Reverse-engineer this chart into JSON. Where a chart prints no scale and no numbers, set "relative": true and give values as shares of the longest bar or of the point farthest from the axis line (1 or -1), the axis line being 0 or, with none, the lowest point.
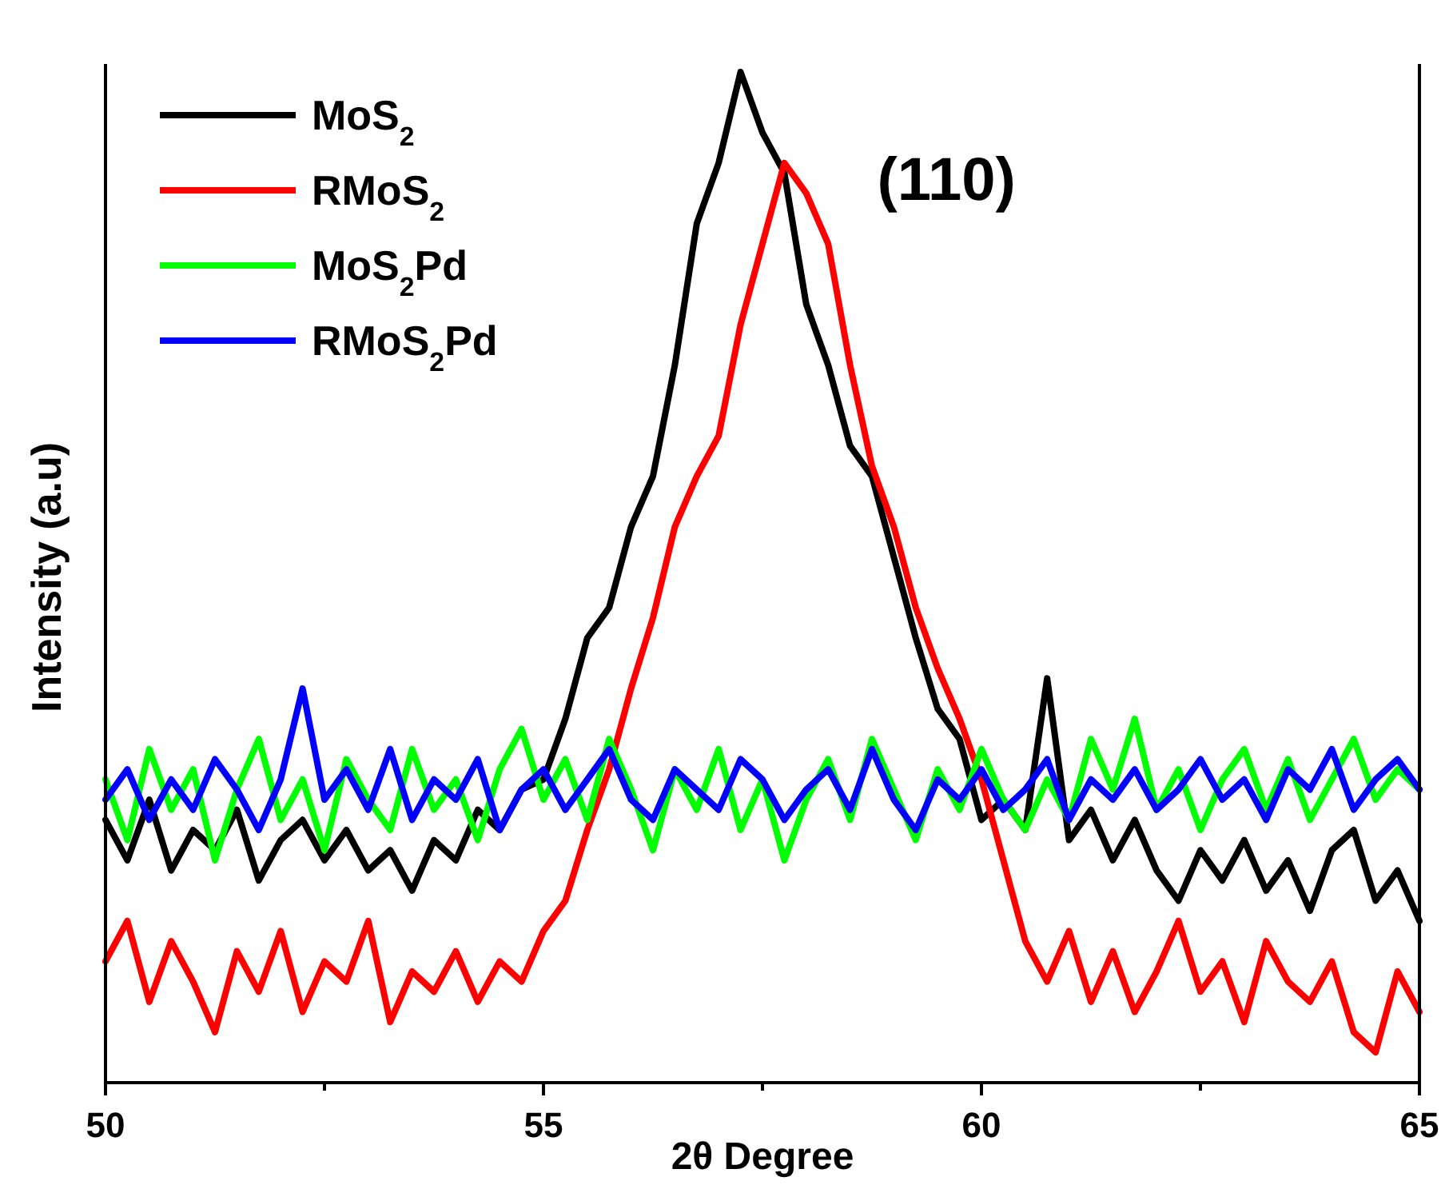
{
  "chart_data": {
    "type": "line",
    "xlabel": "2θ Degree",
    "ylabel": "Intensity (a.u)",
    "relative": true,
    "legend": "top left",
    "xlim": [
      50,
      65
    ],
    "xticks": [
      50,
      {
        "value": 52.5,
        "label": null
      },
      55,
      {
        "value": 57.5,
        "label": null
      },
      60,
      {
        "value": 62.5,
        "label": null
      },
      65
    ],
    "annotations": [
      "(110)"
    ],
    "x": [
      50,
      50.25,
      50.5,
      50.75,
      51,
      51.25,
      51.5,
      51.75,
      52,
      52.25,
      52.5,
      52.75,
      53,
      53.25,
      53.5,
      53.75,
      54,
      54.25,
      54.5,
      54.75,
      55,
      55.25,
      55.5,
      55.75,
      56,
      56.25,
      56.5,
      56.75,
      57,
      57.25,
      57.5,
      57.75,
      58,
      58.25,
      58.5,
      58.75,
      59,
      59.25,
      59.5,
      59.75,
      60,
      60.25,
      60.5,
      60.75,
      61,
      61.25,
      61.5,
      61.75,
      62,
      62.25,
      62.5,
      62.75,
      63,
      63.25,
      63.5,
      63.75,
      64,
      64.25,
      64.5,
      64.75,
      65
    ],
    "series": [
      {
        "name": "MoS$_{2}$",
        "color": "#000000",
        "values": [
          0.26,
          0.22,
          0.28,
          0.21,
          0.25,
          0.23,
          0.27,
          0.2,
          0.24,
          0.26,
          0.22,
          0.25,
          0.21,
          0.23,
          0.19,
          0.24,
          0.22,
          0.27,
          0.25,
          0.29,
          0.3,
          0.36,
          0.44,
          0.47,
          0.55,
          0.6,
          0.71,
          0.85,
          0.91,
          1.0,
          0.94,
          0.9,
          0.77,
          0.71,
          0.63,
          0.6,
          0.52,
          0.44,
          0.37,
          0.34,
          0.26,
          0.28,
          0.25,
          0.4,
          0.24,
          0.27,
          0.22,
          0.26,
          0.21,
          0.18,
          0.23,
          0.2,
          0.24,
          0.19,
          0.22,
          0.17,
          0.23,
          0.25,
          0.18,
          0.21,
          0.16
        ]
      },
      {
        "name": "RMoS$_{2}$",
        "color": "#ff0000",
        "values": [
          0.12,
          0.16,
          0.08,
          0.14,
          0.1,
          0.05,
          0.13,
          0.09,
          0.15,
          0.07,
          0.12,
          0.1,
          0.16,
          0.06,
          0.11,
          0.09,
          0.13,
          0.08,
          0.12,
          0.1,
          0.15,
          0.18,
          0.25,
          0.31,
          0.39,
          0.46,
          0.55,
          0.6,
          0.64,
          0.75,
          0.83,
          0.91,
          0.88,
          0.83,
          0.71,
          0.61,
          0.55,
          0.47,
          0.41,
          0.36,
          0.3,
          0.22,
          0.14,
          0.1,
          0.15,
          0.08,
          0.13,
          0.07,
          0.11,
          0.16,
          0.09,
          0.12,
          0.06,
          0.14,
          0.1,
          0.08,
          0.12,
          0.05,
          0.03,
          0.11,
          0.07
        ]
      },
      {
        "name": "MoS$_{2}$Pd",
        "color": "#00ff00",
        "values": [
          0.3,
          0.24,
          0.33,
          0.27,
          0.31,
          0.22,
          0.29,
          0.34,
          0.26,
          0.3,
          0.23,
          0.32,
          0.28,
          0.25,
          0.33,
          0.27,
          0.3,
          0.24,
          0.31,
          0.35,
          0.28,
          0.32,
          0.26,
          0.34,
          0.29,
          0.23,
          0.31,
          0.27,
          0.33,
          0.25,
          0.3,
          0.22,
          0.28,
          0.32,
          0.26,
          0.34,
          0.29,
          0.24,
          0.31,
          0.27,
          0.33,
          0.28,
          0.25,
          0.3,
          0.26,
          0.34,
          0.29,
          0.36,
          0.27,
          0.31,
          0.25,
          0.3,
          0.33,
          0.27,
          0.32,
          0.26,
          0.3,
          0.34,
          0.28,
          0.31,
          0.29
        ]
      },
      {
        "name": "RMoS$_{2}$Pd",
        "color": "#0000ff",
        "values": [
          0.28,
          0.31,
          0.26,
          0.3,
          0.27,
          0.32,
          0.29,
          0.25,
          0.3,
          0.39,
          0.28,
          0.31,
          0.27,
          0.33,
          0.26,
          0.3,
          0.28,
          0.32,
          0.25,
          0.29,
          0.31,
          0.27,
          0.3,
          0.33,
          0.28,
          0.26,
          0.31,
          0.29,
          0.27,
          0.32,
          0.3,
          0.26,
          0.29,
          0.31,
          0.27,
          0.33,
          0.28,
          0.25,
          0.3,
          0.28,
          0.31,
          0.27,
          0.29,
          0.32,
          0.26,
          0.3,
          0.28,
          0.31,
          0.27,
          0.29,
          0.32,
          0.28,
          0.3,
          0.26,
          0.31,
          0.29,
          0.33,
          0.27,
          0.3,
          0.32,
          0.29
        ]
      }
    ]
  }
}
